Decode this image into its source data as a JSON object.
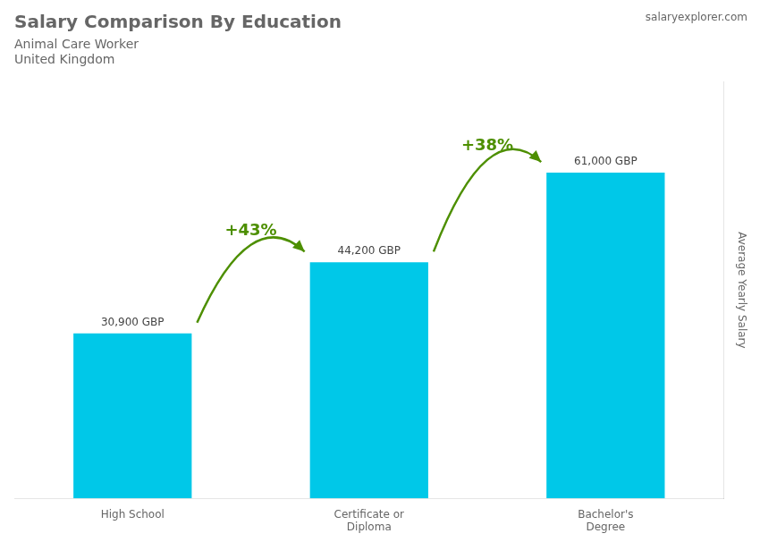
{
  "chart_data": {
    "type": "bar",
    "title": "Salary Comparison By Education",
    "subtitle": [
      "Animal Care Worker",
      "United Kingdom"
    ],
    "source": "salaryexplorer.com",
    "ylabel": "Average Yearly Salary",
    "categories": [
      "High School",
      "Certificate or\nDiploma",
      "Bachelor's\nDegree"
    ],
    "values": [
      30900,
      44200,
      61000
    ],
    "value_labels": [
      "30,900 GBP",
      "44,200 GBP",
      "61,000 GBP"
    ],
    "data_labels": true,
    "annotations": [
      "+43%",
      "+38%"
    ],
    "color": "#00c8e8",
    "ylim": [
      0,
      78000
    ],
    "grid": false,
    "tick_labels": "x"
  }
}
